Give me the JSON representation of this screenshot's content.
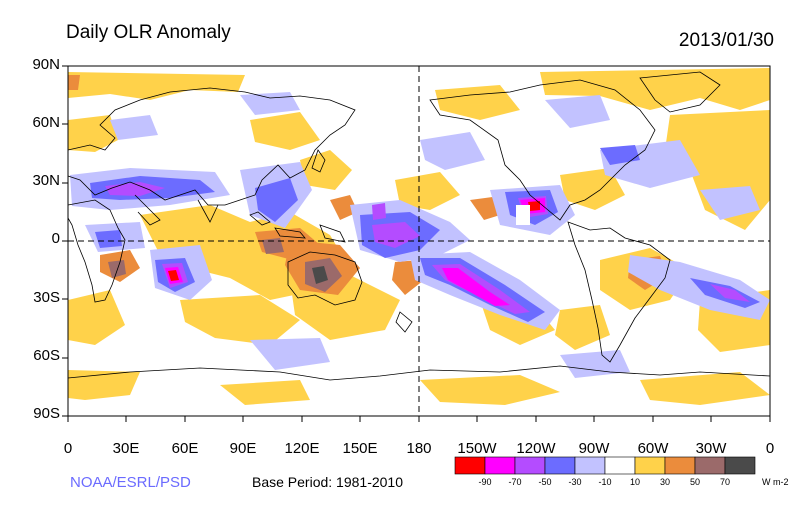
{
  "title": "Daily OLR Anomaly",
  "date": "2013/01/30",
  "credit": "NOAA/ESRL/PSD",
  "base_period": "Base Period: 1981-2010",
  "lat_labels": [
    "90N",
    "60N",
    "30N",
    "0",
    "30S",
    "60S",
    "90S"
  ],
  "lon_labels": [
    "0",
    "30E",
    "60E",
    "90E",
    "120E",
    "150E",
    "180",
    "150W",
    "120W",
    "90W",
    "60W",
    "30W",
    "0"
  ],
  "colorbar": {
    "colors": [
      "#ff0000",
      "#ff00ff",
      "#b44cff",
      "#6c6cff",
      "#c2c2ff",
      "#ffffff",
      "#ffd24a",
      "#eb8c3c",
      "#9b6a6a",
      "#4a4a4a"
    ],
    "ticks": [
      "-90",
      "-70",
      "-50",
      "-30",
      "-10",
      "10",
      "30",
      "50",
      "70"
    ],
    "unit": "W m-2"
  },
  "colors": {
    "coast": "#000000",
    "neg_light": "#c2c2ff",
    "neg_mid": "#6c6cff",
    "neg_strong": "#b44cff",
    "neg_max": "#ff00ff",
    "neg_extreme": "#ff0000",
    "pos_light": "#ffd24a",
    "pos_mid": "#eb8c3c",
    "pos_strong": "#9b6a6a",
    "pos_max": "#4a4a4a"
  }
}
